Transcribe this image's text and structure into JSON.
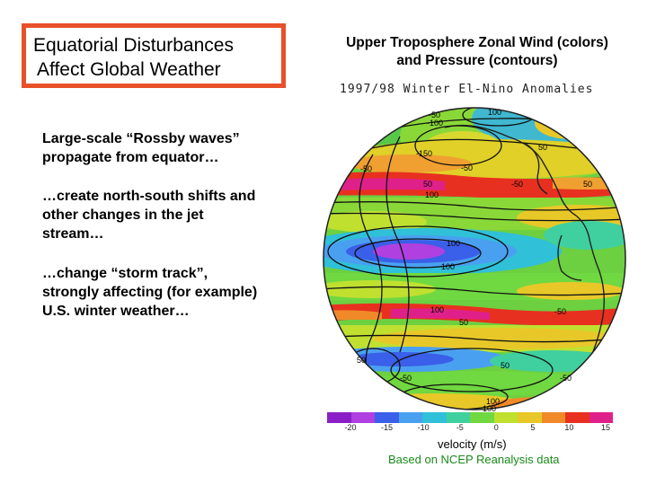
{
  "title": {
    "line1": "Equatorial Disturbances",
    "line2": "Affect Global Weather"
  },
  "map_title": {
    "line1": "Upper Troposphere Zonal Wind (colors)",
    "line2": "and Pressure (contours)"
  },
  "map_subtitle": "1997/98 Winter El-Nino Anomalies",
  "paragraphs": [
    {
      "line1": "Large-scale “Rossby waves”",
      "line2": "propagate from equator…"
    },
    {
      "line1": "…create north-south shifts and",
      "line2": "other changes in the jet",
      "line3": "stream…"
    },
    {
      "line1": "…change “storm track”,",
      "line2": "strongly affecting (for example)",
      "line3": "U.S. winter weather…"
    }
  ],
  "contour_labels": [
    {
      "text": "-50"
    },
    {
      "text": "-100"
    },
    {
      "text": "100"
    },
    {
      "text": "50"
    },
    {
      "text": "-150"
    },
    {
      "text": "-50"
    },
    {
      "text": "-50"
    },
    {
      "text": "50"
    },
    {
      "text": "100"
    },
    {
      "text": "-50"
    },
    {
      "text": "50"
    },
    {
      "text": "100"
    },
    {
      "text": "100"
    },
    {
      "text": "100"
    },
    {
      "text": "50"
    },
    {
      "text": "-50"
    },
    {
      "text": "50"
    },
    {
      "text": "50"
    },
    {
      "text": "-50"
    },
    {
      "text": "-50"
    },
    {
      "text": "100"
    },
    {
      "text": "100"
    }
  ],
  "colorbar": {
    "colors": [
      "#8a1fc8",
      "#b040e0",
      "#3a5fe8",
      "#4aa0f0",
      "#30c0d8",
      "#40d0a0",
      "#70d840",
      "#c0e030",
      "#e8c828",
      "#f08a28",
      "#e83020",
      "#e0208a"
    ],
    "ticks": [
      "-20",
      "-15",
      "-10",
      "-5",
      "0",
      "5",
      "10",
      "15"
    ],
    "label": "velocity (m/s)"
  },
  "source": "Based on NCEP Reanalysis data"
}
